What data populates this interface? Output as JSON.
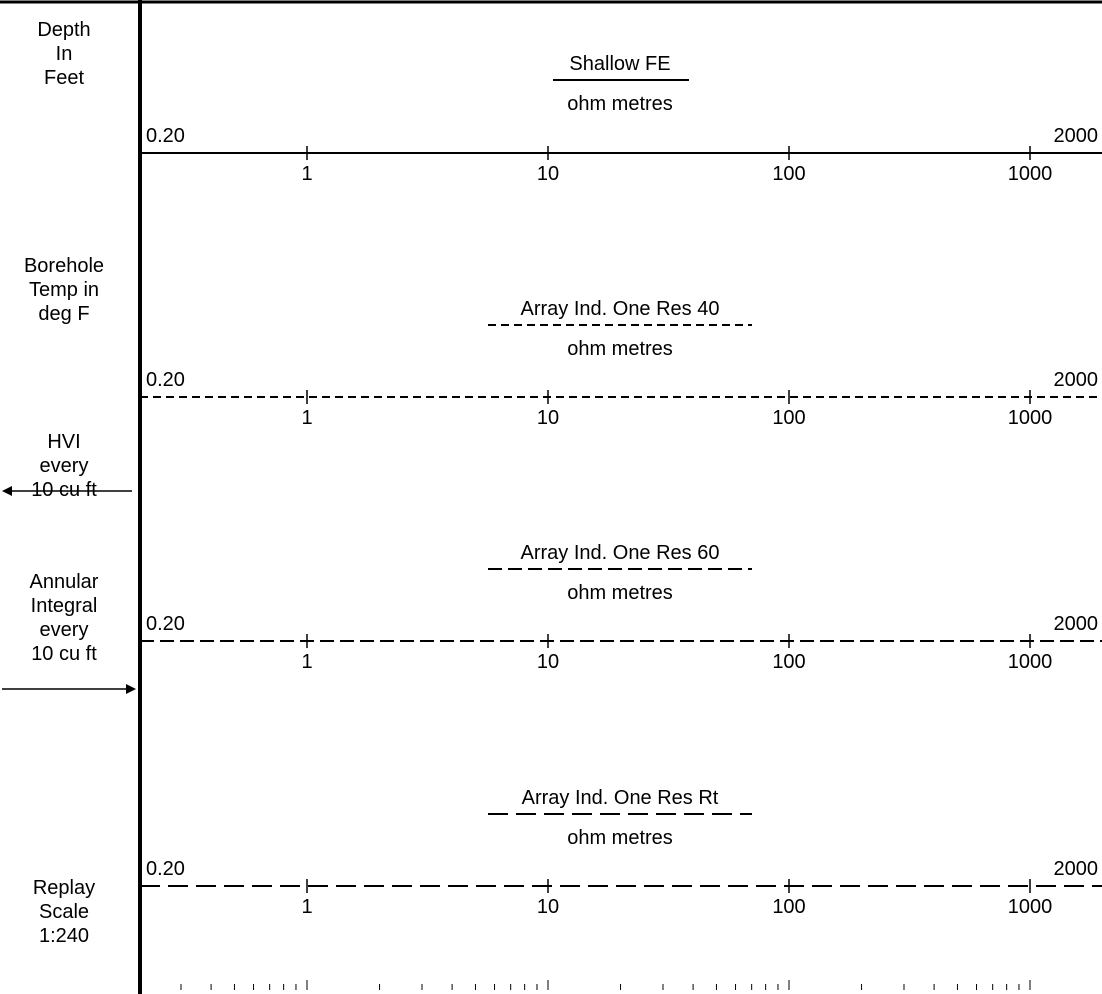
{
  "left_column": {
    "depth_label": [
      "Depth",
      "In",
      "Feet"
    ],
    "temp_label": [
      "Borehole",
      "Temp in",
      "deg F"
    ],
    "hvi_label": [
      "HVI",
      "every",
      "10 cu ft"
    ],
    "annular_label": [
      "Annular",
      "Integral",
      "every",
      "10 cu ft"
    ],
    "replay_label": [
      "Replay",
      "Scale",
      "1:240"
    ]
  },
  "scale": {
    "left_value": "0.20",
    "right_value": "2000",
    "decade_labels": [
      "1",
      "10",
      "100",
      "1000"
    ],
    "log_scale": true,
    "min": 0.2,
    "max": 2000
  },
  "tracks": [
    {
      "title": "Shallow FE",
      "unit": "ohm metres",
      "line_style": "solid"
    },
    {
      "title": "Array Ind. One Res 40",
      "unit": "ohm metres",
      "line_style": "short-dash"
    },
    {
      "title": "Array Ind. One Res 60",
      "unit": "ohm metres",
      "line_style": "medium-dash"
    },
    {
      "title": "Array Ind. One Res Rt",
      "unit": "ohm metres",
      "line_style": "long-dash"
    }
  ],
  "colors": {
    "ink": "#000000",
    "background": "#ffffff"
  }
}
